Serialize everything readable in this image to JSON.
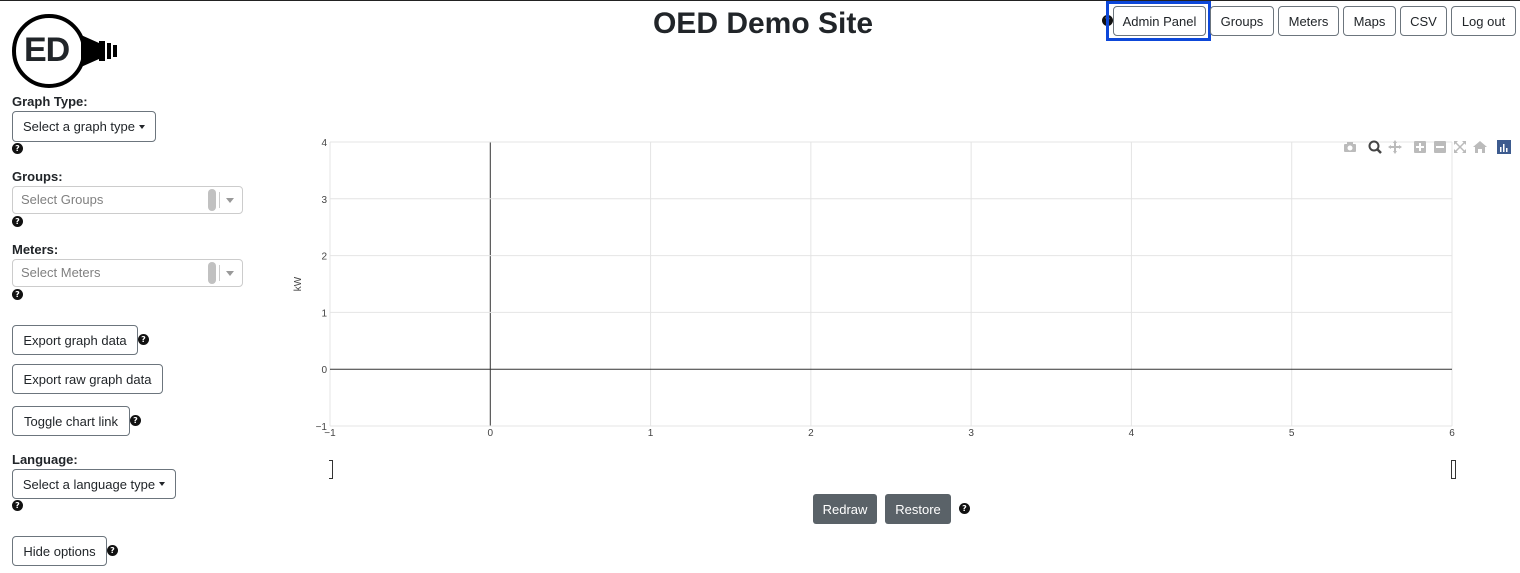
{
  "header": {
    "title": "OED Demo Site",
    "nav": [
      "Admin Panel",
      "Groups",
      "Meters",
      "Maps",
      "CSV",
      "Log out"
    ]
  },
  "logo": {
    "text": "ED"
  },
  "sidebar": {
    "graph_type": {
      "label": "Graph Type:",
      "value": "Select a graph type"
    },
    "groups": {
      "label": "Groups:",
      "placeholder": "Select Groups"
    },
    "meters": {
      "label": "Meters:",
      "placeholder": "Select Meters"
    },
    "export_graph": "Export graph data",
    "export_raw": "Export raw graph data",
    "toggle_link": "Toggle chart link",
    "language": {
      "label": "Language:",
      "value": "Select a language type"
    },
    "hide_options": "Hide options"
  },
  "chart_data": {
    "type": "line",
    "ylabel": "kW",
    "xlim": [
      -1,
      6
    ],
    "ylim": [
      -1,
      4
    ],
    "x_ticks": [
      "−1",
      "0",
      "1",
      "2",
      "3",
      "4",
      "5",
      "6"
    ],
    "y_ticks": [
      "−1",
      "0",
      "1",
      "2",
      "3",
      "4"
    ],
    "series": []
  },
  "controls": {
    "redraw": "Redraw",
    "restore": "Restore"
  },
  "modebar": [
    "camera-icon",
    "zoom-icon",
    "pan-icon",
    "zoom-in-icon",
    "zoom-out-icon",
    "autoscale-icon",
    "reset-axes-icon",
    "plotly-logo-icon"
  ],
  "colors": {
    "highlight": "#0d47d9",
    "dark_button": "#5a6268"
  }
}
